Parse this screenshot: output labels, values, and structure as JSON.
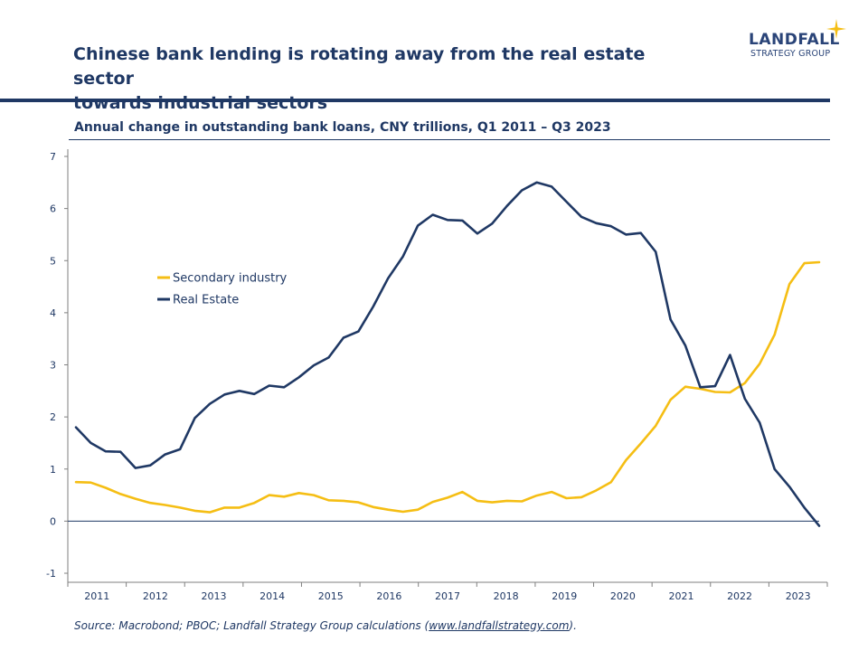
{
  "header": {
    "title_line1": "Chinese bank lending is rotating away from the real estate sector",
    "title_line2": "towards industrial sectors",
    "logo_name": "LANDFALL",
    "logo_sub": "STRATEGY GROUP"
  },
  "colors": {
    "navy": "#1f3864",
    "gold": "#f5be14"
  },
  "footer": {
    "source_prefix": "Source: Macrobond; PBOC; Landfall Strategy Group calculations (",
    "source_link": "www.landfallstrategy.com",
    "source_suffix": ")."
  },
  "chart_data": {
    "type": "line",
    "title": "Annual change in outstanding bank loans, CNY trillions, Q1 2011 – Q3 2023",
    "xlabel": "",
    "ylabel": "",
    "ylim": [
      -1,
      7
    ],
    "yticks": [
      -1,
      0,
      1,
      2,
      3,
      4,
      5,
      6,
      7
    ],
    "year_labels": [
      "2011",
      "2012",
      "2013",
      "2014",
      "2015",
      "2016",
      "2017",
      "2018",
      "2019",
      "2020",
      "2021",
      "2022",
      "2023"
    ],
    "x": [
      "Q1 2011",
      "Q2 2011",
      "Q3 2011",
      "Q4 2011",
      "Q1 2012",
      "Q2 2012",
      "Q3 2012",
      "Q4 2012",
      "Q1 2013",
      "Q2 2013",
      "Q3 2013",
      "Q4 2013",
      "Q1 2014",
      "Q2 2014",
      "Q3 2014",
      "Q4 2014",
      "Q1 2015",
      "Q2 2015",
      "Q3 2015",
      "Q4 2015",
      "Q1 2016",
      "Q2 2016",
      "Q3 2016",
      "Q4 2016",
      "Q1 2017",
      "Q2 2017",
      "Q3 2017",
      "Q4 2017",
      "Q1 2018",
      "Q2 2018",
      "Q3 2018",
      "Q4 2018",
      "Q1 2019",
      "Q2 2019",
      "Q3 2019",
      "Q4 2019",
      "Q1 2020",
      "Q2 2020",
      "Q3 2020",
      "Q4 2020",
      "Q1 2021",
      "Q2 2021",
      "Q3 2021",
      "Q4 2021",
      "Q1 2022",
      "Q2 2022",
      "Q3 2022",
      "Q4 2022",
      "Q1 2023",
      "Q2 2023",
      "Q3 2023"
    ],
    "legend_position": "left-middle",
    "grid": false,
    "series": [
      {
        "name": "Secondary industry",
        "color": "#f5be14",
        "values": [
          0.75,
          0.74,
          0.64,
          0.52,
          0.43,
          0.35,
          0.31,
          0.26,
          0.2,
          0.17,
          0.26,
          0.26,
          0.35,
          0.5,
          0.47,
          0.54,
          0.5,
          0.4,
          0.39,
          0.36,
          0.27,
          0.22,
          0.18,
          0.22,
          0.37,
          0.45,
          0.56,
          0.39,
          0.36,
          0.39,
          0.38,
          0.49,
          0.56,
          0.44,
          0.46,
          0.59,
          0.75,
          1.17,
          1.49,
          1.83,
          2.33,
          2.58,
          2.54,
          2.48,
          2.47,
          2.65,
          3.02,
          3.58,
          4.55,
          4.95,
          4.97
        ]
      },
      {
        "name": "Real Estate",
        "color": "#1f3864",
        "values": [
          1.8,
          1.5,
          1.34,
          1.33,
          1.02,
          1.07,
          1.28,
          1.38,
          1.98,
          2.25,
          2.43,
          2.5,
          2.44,
          2.6,
          2.57,
          2.76,
          2.99,
          3.14,
          3.52,
          3.64,
          4.12,
          4.66,
          5.08,
          5.67,
          5.88,
          5.78,
          5.77,
          5.52,
          5.71,
          6.05,
          6.35,
          6.5,
          6.42,
          6.13,
          5.84,
          5.72,
          5.66,
          5.5,
          5.53,
          5.17,
          3.87,
          3.37,
          2.57,
          2.59,
          3.19,
          2.35,
          1.89,
          1.0,
          0.66,
          0.26,
          -0.09
        ]
      }
    ]
  }
}
